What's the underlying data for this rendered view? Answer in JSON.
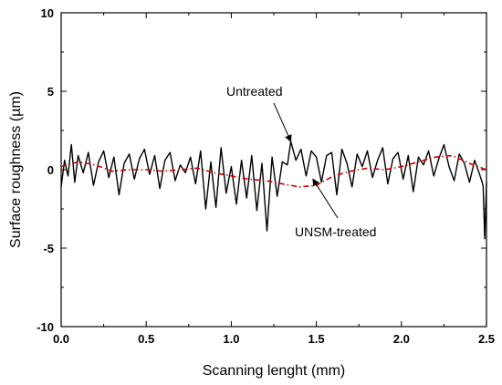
{
  "chart_data": {
    "type": "line",
    "xlabel": "Scanning lenght (mm)",
    "ylabel": "Surface roughness (µm)",
    "xlim": [
      0.0,
      2.5
    ],
    "ylim": [
      -10,
      10
    ],
    "xticks": [
      "0.0",
      "0.5",
      "1.0",
      "1.5",
      "2.0",
      "2.5"
    ],
    "yticks": [
      "10",
      "5",
      "0",
      "-5",
      "-10"
    ],
    "grid": false,
    "legend": "none",
    "annotations": [
      {
        "text": "Untreated",
        "arrow_to": [
          1.35,
          1.8
        ]
      },
      {
        "text": "UNSM-treated",
        "arrow_to": [
          1.48,
          -0.6
        ]
      }
    ],
    "series": [
      {
        "name": "Untreated",
        "color": "#000000",
        "style": "solid",
        "x": [
          0.0,
          0.02,
          0.04,
          0.06,
          0.08,
          0.1,
          0.13,
          0.16,
          0.19,
          0.22,
          0.25,
          0.28,
          0.31,
          0.34,
          0.37,
          0.4,
          0.43,
          0.46,
          0.49,
          0.52,
          0.55,
          0.58,
          0.61,
          0.64,
          0.67,
          0.7,
          0.73,
          0.76,
          0.79,
          0.82,
          0.85,
          0.88,
          0.91,
          0.94,
          0.97,
          1.0,
          1.03,
          1.06,
          1.09,
          1.12,
          1.15,
          1.18,
          1.21,
          1.24,
          1.27,
          1.3,
          1.33,
          1.35,
          1.38,
          1.41,
          1.44,
          1.47,
          1.5,
          1.53,
          1.56,
          1.59,
          1.62,
          1.65,
          1.68,
          1.71,
          1.74,
          1.77,
          1.8,
          1.83,
          1.86,
          1.89,
          1.92,
          1.95,
          1.98,
          2.01,
          2.04,
          2.07,
          2.1,
          2.13,
          2.16,
          2.19,
          2.22,
          2.25,
          2.28,
          2.31,
          2.34,
          2.37,
          2.4,
          2.43,
          2.46,
          2.48,
          2.49,
          2.5
        ],
        "y": [
          -1.1,
          0.6,
          -0.4,
          1.6,
          -0.8,
          0.9,
          -0.2,
          1.1,
          -1.0,
          0.5,
          1.2,
          -0.5,
          0.8,
          -1.6,
          0.4,
          1.0,
          -0.6,
          0.7,
          1.3,
          -0.3,
          0.9,
          -1.2,
          0.6,
          1.1,
          -0.7,
          0.3,
          -0.2,
          0.8,
          -0.9,
          1.2,
          -2.5,
          0.5,
          -2.4,
          1.4,
          -1.5,
          0.2,
          -2.2,
          0.6,
          -1.8,
          0.9,
          -2.6,
          0.4,
          -3.9,
          0.8,
          -1.7,
          0.5,
          0.3,
          1.8,
          0.6,
          1.3,
          -0.4,
          1.2,
          0.8,
          -0.8,
          0.9,
          1.1,
          -1.6,
          1.3,
          0.4,
          -1.1,
          1.0,
          0.2,
          1.2,
          -0.5,
          0.6,
          1.4,
          -0.9,
          0.7,
          1.1,
          -0.6,
          0.9,
          -1.4,
          0.8,
          0.3,
          1.2,
          -0.4,
          0.7,
          1.6,
          0.2,
          -0.7,
          1.0,
          0.4,
          -0.8,
          0.6,
          -0.3,
          -1.0,
          -4.4,
          -0.8
        ]
      },
      {
        "name": "UNSM-treated",
        "color": "#cc0000",
        "style": "dashdot",
        "x": [
          0.0,
          0.1,
          0.2,
          0.3,
          0.4,
          0.5,
          0.6,
          0.7,
          0.8,
          0.9,
          1.0,
          1.1,
          1.2,
          1.3,
          1.4,
          1.5,
          1.6,
          1.7,
          1.8,
          1.9,
          2.0,
          2.1,
          2.2,
          2.3,
          2.4,
          2.5
        ],
        "y": [
          0.2,
          0.5,
          0.3,
          -0.1,
          0.0,
          0.0,
          -0.1,
          0.0,
          0.1,
          -0.2,
          -0.4,
          -0.6,
          -0.7,
          -0.9,
          -1.1,
          -1.0,
          -0.4,
          -0.1,
          0.1,
          0.0,
          0.2,
          0.5,
          0.8,
          0.9,
          0.4,
          0.0
        ]
      }
    ]
  }
}
